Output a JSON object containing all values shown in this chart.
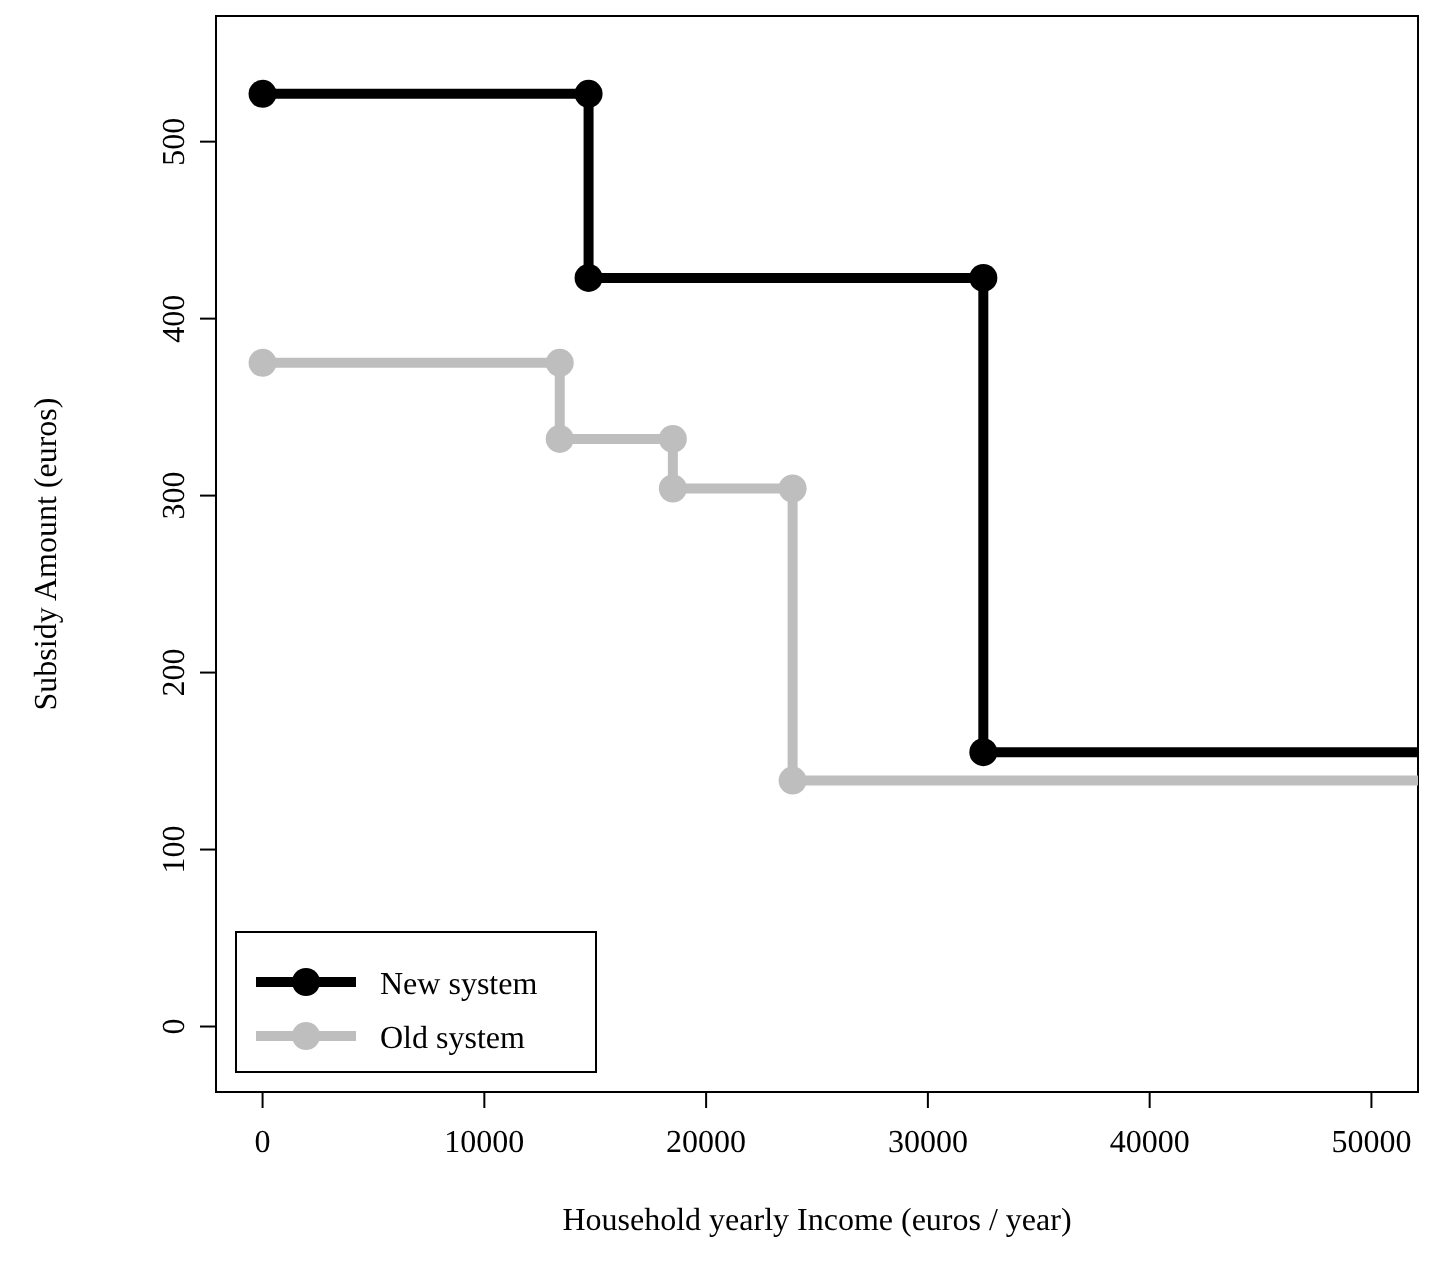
{
  "chart_data": {
    "type": "line",
    "xlabel": "Household yearly Income (euros / year)",
    "ylabel": "Subsidy Amount (euros)",
    "xlim": [
      -2100,
      52100
    ],
    "ylim": [
      -37,
      571
    ],
    "xticks": [
      0,
      10000,
      20000,
      30000,
      40000,
      50000
    ],
    "yticks": [
      0,
      100,
      200,
      300,
      400,
      500
    ],
    "grid": false,
    "legend": "bottom left",
    "marker": "circle",
    "line_style": "solid",
    "series": [
      {
        "name": "New system",
        "color": "#000000",
        "x": [
          0,
          14700,
          14700,
          32500,
          32500,
          52100
        ],
        "values": [
          527,
          527,
          423,
          423,
          155,
          155
        ]
      },
      {
        "name": "Old system",
        "color": "#bebebe",
        "x": [
          0,
          13400,
          13400,
          18500,
          18500,
          23900,
          23900,
          52100
        ],
        "values": [
          375,
          375,
          332,
          332,
          304,
          304,
          139,
          139
        ]
      }
    ]
  }
}
